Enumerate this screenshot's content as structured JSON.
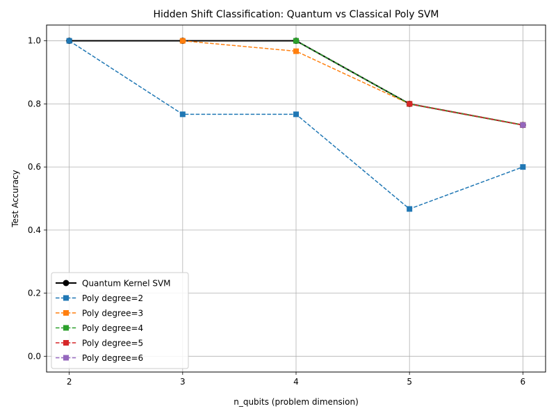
{
  "chart_data": {
    "type": "line",
    "title": "Hidden Shift Classification: Quantum vs Classical Poly SVM",
    "xlabel": "n_qubits (problem dimension)",
    "ylabel": "Test Accuracy",
    "xlim": [
      1.8,
      6.2
    ],
    "ylim": [
      -0.05,
      1.05
    ],
    "x_ticks": [
      2,
      3,
      4,
      5,
      6
    ],
    "y_ticks": [
      0.0,
      0.2,
      0.4,
      0.6,
      0.8,
      1.0
    ],
    "x_tick_labels": [
      "2",
      "3",
      "4",
      "5",
      "6"
    ],
    "y_tick_labels": [
      "0.0",
      "0.2",
      "0.4",
      "0.6",
      "0.8",
      "1.0"
    ],
    "grid": true,
    "legend_position": "lower-left",
    "series": [
      {
        "name": "Quantum Kernel SVM",
        "color": "#000000",
        "style": "solid",
        "marker": "circle",
        "x": [
          2,
          3,
          4,
          5,
          6
        ],
        "y": [
          1.0,
          1.0,
          1.0,
          0.8,
          0.733
        ]
      },
      {
        "name": "Poly degree=2",
        "color": "#1f77b4",
        "style": "dashed",
        "marker": "square",
        "x": [
          2,
          3,
          4,
          5,
          6
        ],
        "y": [
          1.0,
          0.767,
          0.767,
          0.467,
          0.6
        ]
      },
      {
        "name": "Poly degree=3",
        "color": "#ff7f0e",
        "style": "dashed",
        "marker": "square",
        "x": [
          3,
          4,
          5,
          6
        ],
        "y": [
          1.0,
          0.967,
          0.8,
          0.733
        ]
      },
      {
        "name": "Poly degree=4",
        "color": "#2ca02c",
        "style": "dashed",
        "marker": "square",
        "x": [
          4,
          5,
          6
        ],
        "y": [
          1.0,
          0.8,
          0.733
        ]
      },
      {
        "name": "Poly degree=5",
        "color": "#d62728",
        "style": "dashed",
        "marker": "square",
        "x": [
          5,
          6
        ],
        "y": [
          0.8,
          0.733
        ]
      },
      {
        "name": "Poly degree=6",
        "color": "#9467bd",
        "style": "dashed",
        "marker": "square",
        "x": [
          6
        ],
        "y": [
          0.733
        ]
      }
    ]
  }
}
